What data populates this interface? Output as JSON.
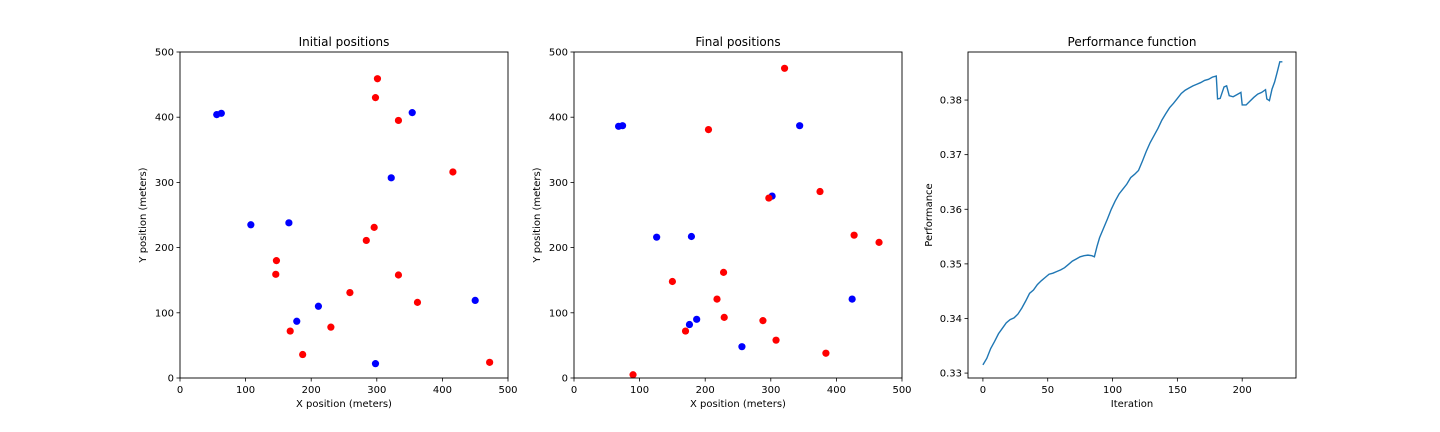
{
  "chart_data": [
    {
      "type": "scatter",
      "title": "Initial positions",
      "xlabel": "X position (meters)",
      "ylabel": "Y position (meters)",
      "xlim": [
        0,
        500
      ],
      "ylim": [
        0,
        500
      ],
      "xticks": [
        0,
        100,
        200,
        300,
        400,
        500
      ],
      "yticks": [
        0,
        100,
        200,
        300,
        400,
        500
      ],
      "grid": false,
      "series": [
        {
          "color": "#0000ff",
          "points": [
            [
              56,
              404
            ],
            [
              63,
              406
            ],
            [
              108,
              235
            ],
            [
              166,
              238
            ],
            [
              178,
              87
            ],
            [
              211,
              110
            ],
            [
              298,
              22
            ],
            [
              322,
              307
            ],
            [
              354,
              407
            ],
            [
              450,
              119
            ]
          ]
        },
        {
          "color": "#ff0000",
          "points": [
            [
              301,
              459
            ],
            [
              298,
              430
            ],
            [
              333,
              395
            ],
            [
              416,
              316
            ],
            [
              296,
              231
            ],
            [
              284,
              211
            ],
            [
              147,
              180
            ],
            [
              146,
              159
            ],
            [
              333,
              158
            ],
            [
              259,
              131
            ],
            [
              362,
              116
            ],
            [
              168,
              72
            ],
            [
              230,
              78
            ],
            [
              187,
              36
            ],
            [
              472,
              24
            ]
          ]
        }
      ]
    },
    {
      "type": "scatter",
      "title": "Final positions",
      "xlabel": "X position (meters)",
      "ylabel": "Y position (meters)",
      "xlim": [
        0,
        500
      ],
      "ylim": [
        0,
        500
      ],
      "xticks": [
        0,
        100,
        200,
        300,
        400,
        500
      ],
      "yticks": [
        0,
        100,
        200,
        300,
        400,
        500
      ],
      "grid": false,
      "series": [
        {
          "color": "#0000ff",
          "points": [
            [
              68,
              386
            ],
            [
              74,
              387
            ],
            [
              344,
              387
            ],
            [
              302,
              279
            ],
            [
              126,
              216
            ],
            [
              179,
              217
            ],
            [
              424,
              121
            ],
            [
              187,
              90
            ],
            [
              176,
              82
            ],
            [
              256,
              48
            ]
          ]
        },
        {
          "color": "#ff0000",
          "points": [
            [
              321,
              475
            ],
            [
              205,
              381
            ],
            [
              375,
              286
            ],
            [
              297,
              276
            ],
            [
              427,
              219
            ],
            [
              465,
              208
            ],
            [
              228,
              162
            ],
            [
              150,
              148
            ],
            [
              218,
              121
            ],
            [
              229,
              93
            ],
            [
              288,
              88
            ],
            [
              170,
              72
            ],
            [
              308,
              58
            ],
            [
              384,
              38
            ],
            [
              90,
              5
            ]
          ]
        }
      ]
    },
    {
      "type": "line",
      "title": "Performance function",
      "xlabel": "Iteration",
      "ylabel": "Performance",
      "xlim": [
        -11.5,
        241.5
      ],
      "ylim": [
        0.3291,
        0.3888
      ],
      "xticks": [
        0,
        50,
        100,
        150,
        200
      ],
      "yticks": [
        0.33,
        0.34,
        0.35,
        0.36,
        0.37,
        0.38
      ],
      "ytick_labels": [
        "0.33",
        "0.34",
        "0.35",
        "0.36",
        "0.37",
        "0.38"
      ],
      "grid": false,
      "series": [
        {
          "color": "#1f77b4",
          "x": [
            0,
            3,
            6,
            9,
            12,
            15,
            18,
            21,
            24,
            27,
            30,
            33,
            36,
            39,
            42,
            45,
            48,
            51,
            54,
            57,
            60,
            63,
            66,
            69,
            72,
            75,
            78,
            81,
            84,
            86,
            88,
            90,
            93,
            96,
            99,
            102,
            105,
            108,
            111,
            114,
            117,
            120,
            123,
            126,
            129,
            132,
            135,
            138,
            141,
            144,
            147,
            150,
            153,
            156,
            159,
            162,
            165,
            168,
            171,
            174,
            177,
            180,
            181,
            183,
            186,
            188,
            190,
            193,
            196,
            199,
            200,
            203,
            206,
            209,
            212,
            215,
            218,
            219,
            221,
            223,
            225,
            227,
            229,
            231
          ],
          "y": [
            0.3315,
            0.3327,
            0.3345,
            0.3358,
            0.3372,
            0.3382,
            0.3392,
            0.3398,
            0.3401,
            0.3408,
            0.3419,
            0.3432,
            0.3446,
            0.3452,
            0.3462,
            0.3469,
            0.3475,
            0.3481,
            0.3483,
            0.3486,
            0.3489,
            0.3493,
            0.3499,
            0.3505,
            0.3509,
            0.3513,
            0.3515,
            0.3516,
            0.3515,
            0.3513,
            0.3532,
            0.3548,
            0.3565,
            0.3582,
            0.36,
            0.3615,
            0.3628,
            0.3637,
            0.3646,
            0.3658,
            0.3664,
            0.3671,
            0.3688,
            0.3706,
            0.3722,
            0.3735,
            0.3748,
            0.3763,
            0.3775,
            0.3786,
            0.3794,
            0.3803,
            0.3812,
            0.3818,
            0.3822,
            0.3826,
            0.3829,
            0.3832,
            0.3836,
            0.3838,
            0.3842,
            0.3844,
            0.3802,
            0.3803,
            0.3824,
            0.3826,
            0.3808,
            0.3806,
            0.381,
            0.3814,
            0.3791,
            0.3791,
            0.3798,
            0.3805,
            0.3811,
            0.3814,
            0.3819,
            0.3802,
            0.3799,
            0.382,
            0.3833,
            0.3851,
            0.387,
            0.387
          ]
        }
      ]
    }
  ]
}
